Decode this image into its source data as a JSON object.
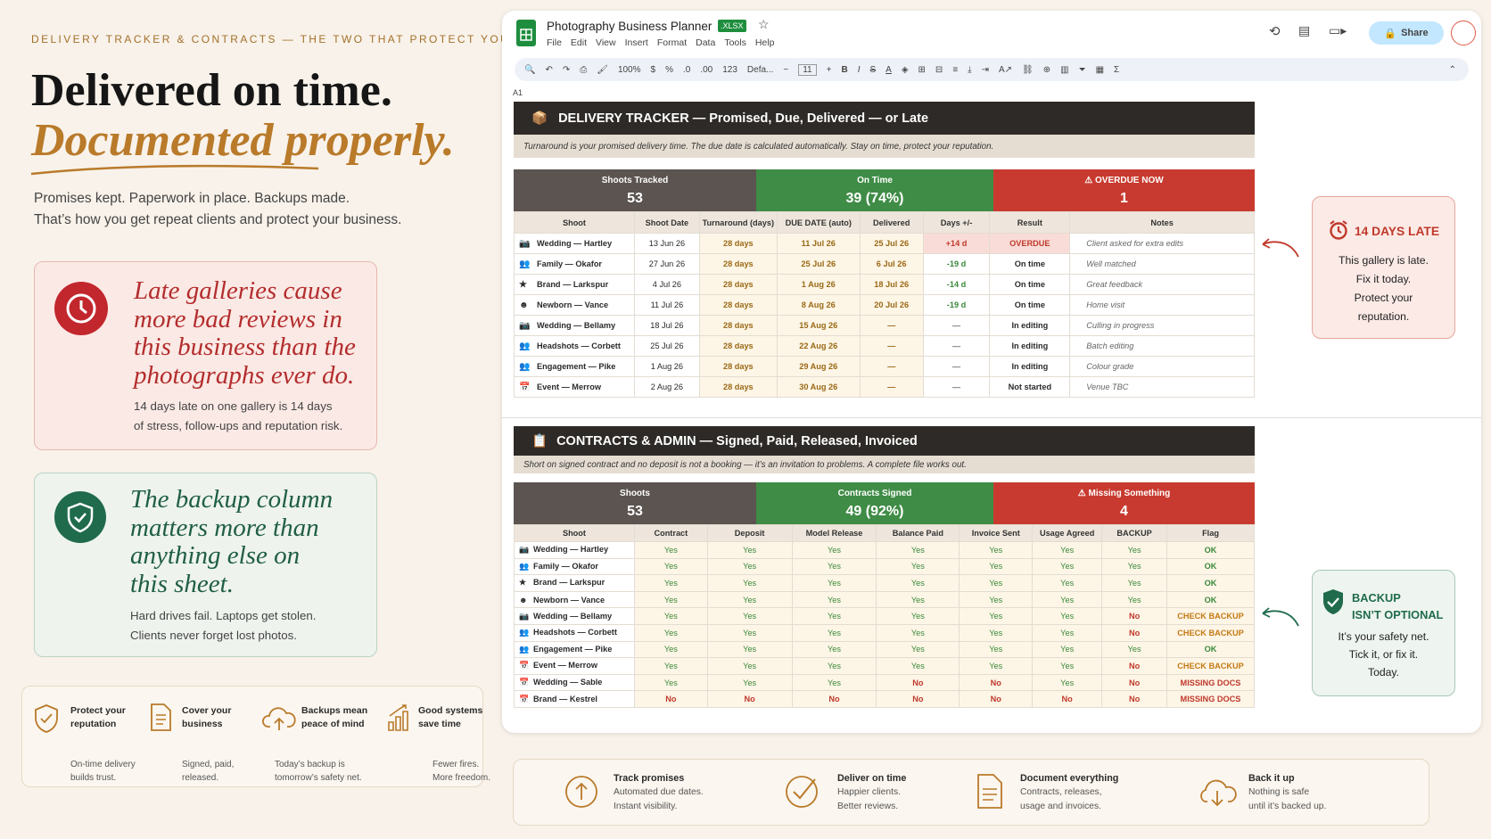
{
  "hero": {
    "eyebrow": "DELIVERY TRACKER & CONTRACTS — THE TWO THAT PROTECT YOU",
    "title_line1": "Delivered on time.",
    "title_line2": "Documented properly.",
    "subtitle_line1": "Promises kept. Paperwork in place. Backups made.",
    "subtitle_line2": "That’s how you get repeat clients and protect your business."
  },
  "card_late": {
    "quote": [
      "Late galleries cause",
      "more bad reviews in",
      "this business than the",
      "photographs ever do."
    ],
    "body": [
      "14 days late on one gallery is 14 days",
      "of stress, follow-ups and reputation risk."
    ]
  },
  "card_backup": {
    "quote": [
      "The backup column",
      "matters more than",
      "anything else on",
      "this sheet."
    ],
    "body": [
      "Hard drives fail. Laptops get stolen.",
      "Clients never forget lost photos."
    ]
  },
  "features": [
    {
      "title": [
        "Protect your",
        "reputation"
      ],
      "desc": [
        "On-time delivery",
        "builds trust."
      ],
      "icon": "shield-check-icon"
    },
    {
      "title": [
        "Cover your",
        "business"
      ],
      "desc": [
        "Signed, paid,",
        "released."
      ],
      "icon": "document-icon"
    },
    {
      "title": [
        "Backups mean",
        "peace of mind"
      ],
      "desc": [
        "Today’s backup is",
        "tomorrow’s safety net."
      ],
      "icon": "cloud-upload-icon"
    },
    {
      "title": [
        "Good systems",
        "save time"
      ],
      "desc": [
        "Fewer fires.",
        "More freedom."
      ],
      "icon": "bar-chart-icon"
    }
  ],
  "sheet": {
    "doc_title": "Photography Business Planner",
    "badge": ".XLSX",
    "menu": [
      "File",
      "Edit",
      "View",
      "Insert",
      "Format",
      "Data",
      "Tools",
      "Help"
    ],
    "share_label": "Share",
    "zoom": "100%",
    "font": "Defa...",
    "font_size": "11",
    "cell_ref": "A1",
    "delivery": {
      "header": "DELIVERY TRACKER — Promised, Due, Delivered — or Late",
      "note": "Turnaround is your promised delivery time. The due date is calculated automatically. Stay on time, protect your reputation.",
      "stats": [
        {
          "label": "Shoots Tracked",
          "value": "53",
          "color": "#5b5450"
        },
        {
          "label": "On Time",
          "value": "39 (74%)",
          "color": "#3f8c46"
        },
        {
          "label": "⚠ OVERDUE NOW",
          "value": "1",
          "color": "#c83a2f"
        }
      ],
      "columns": [
        "Shoot",
        "Shoot Date",
        "Turnaround (days)",
        "DUE DATE (auto)",
        "Delivered",
        "Days +/-",
        "Result",
        "Notes"
      ],
      "rows": [
        {
          "icon": "📷",
          "shoot": "Wedding — Hartley",
          "date": "13 Jun 26",
          "turn": "28 days",
          "due": "11 Jul 26",
          "delivered": "25 Jul 26",
          "days": "+14 d",
          "result": "OVERDUE",
          "notes": "Client asked for extra edits"
        },
        {
          "icon": "👥",
          "shoot": "Family — Okafor",
          "date": "27 Jun 26",
          "turn": "28 days",
          "due": "25 Jul 26",
          "delivered": "6 Jul 26",
          "days": "-19 d",
          "result": "On time",
          "notes": "Well matched"
        },
        {
          "icon": "★",
          "shoot": "Brand — Larkspur",
          "date": "4 Jul 26",
          "turn": "28 days",
          "due": "1 Aug 26",
          "delivered": "18 Jul 26",
          "days": "-14 d",
          "result": "On time",
          "notes": "Great feedback"
        },
        {
          "icon": "☻",
          "shoot": "Newborn — Vance",
          "date": "11 Jul 26",
          "turn": "28 days",
          "due": "8 Aug 26",
          "delivered": "20 Jul 26",
          "days": "-19 d",
          "result": "On time",
          "notes": "Home visit"
        },
        {
          "icon": "📷",
          "shoot": "Wedding — Bellamy",
          "date": "18 Jul 26",
          "turn": "28 days",
          "due": "15 Aug 26",
          "delivered": "—",
          "days": "—",
          "result": "In editing",
          "notes": "Culling in progress"
        },
        {
          "icon": "👥",
          "shoot": "Headshots — Corbett",
          "date": "25 Jul 26",
          "turn": "28 days",
          "due": "22 Aug 26",
          "delivered": "—",
          "days": "—",
          "result": "In editing",
          "notes": "Batch editing"
        },
        {
          "icon": "👥",
          "shoot": "Engagement — Pike",
          "date": "1 Aug 26",
          "turn": "28 days",
          "due": "29 Aug 26",
          "delivered": "—",
          "days": "—",
          "result": "In editing",
          "notes": "Colour grade"
        },
        {
          "icon": "📅",
          "shoot": "Event — Merrow",
          "date": "2 Aug 26",
          "turn": "28 days",
          "due": "30 Aug 26",
          "delivered": "—",
          "days": "—",
          "result": "Not started",
          "notes": "Venue TBC"
        }
      ]
    },
    "contracts": {
      "header": "CONTRACTS & ADMIN — Signed, Paid, Released, Invoiced",
      "note": "Short on signed contract and no deposit is not a booking — it’s an invitation to problems. A complete file works out.",
      "stats": [
        {
          "label": "Shoots",
          "value": "53",
          "color": "#5b5450"
        },
        {
          "label": "Contracts Signed",
          "value": "49 (92%)",
          "color": "#3f8c46"
        },
        {
          "label": "⚠ Missing Something",
          "value": "4",
          "color": "#c83a2f"
        }
      ],
      "columns": [
        "Shoot",
        "Contract",
        "Deposit",
        "Model Release",
        "Balance Paid",
        "Invoice Sent",
        "Usage Agreed",
        "BACKUP",
        "Flag"
      ],
      "rows": [
        {
          "icon": "📷",
          "shoot": "Wedding — Hartley",
          "v": [
            "Yes",
            "Yes",
            "Yes",
            "Yes",
            "Yes",
            "Yes",
            "Yes"
          ],
          "flag": "OK"
        },
        {
          "icon": "👥",
          "shoot": "Family — Okafor",
          "v": [
            "Yes",
            "Yes",
            "Yes",
            "Yes",
            "Yes",
            "Yes",
            "Yes"
          ],
          "flag": "OK"
        },
        {
          "icon": "★",
          "shoot": "Brand — Larkspur",
          "v": [
            "Yes",
            "Yes",
            "Yes",
            "Yes",
            "Yes",
            "Yes",
            "Yes"
          ],
          "flag": "OK"
        },
        {
          "icon": "☻",
          "shoot": "Newborn — Vance",
          "v": [
            "Yes",
            "Yes",
            "Yes",
            "Yes",
            "Yes",
            "Yes",
            "Yes"
          ],
          "flag": "OK"
        },
        {
          "icon": "📷",
          "shoot": "Wedding — Bellamy",
          "v": [
            "Yes",
            "Yes",
            "Yes",
            "Yes",
            "Yes",
            "Yes",
            "No"
          ],
          "flag": "CHECK BACKUP"
        },
        {
          "icon": "👥",
          "shoot": "Headshots — Corbett",
          "v": [
            "Yes",
            "Yes",
            "Yes",
            "Yes",
            "Yes",
            "Yes",
            "No"
          ],
          "flag": "CHECK BACKUP"
        },
        {
          "icon": "👥",
          "shoot": "Engagement — Pike",
          "v": [
            "Yes",
            "Yes",
            "Yes",
            "Yes",
            "Yes",
            "Yes",
            "Yes"
          ],
          "flag": "OK"
        },
        {
          "icon": "📅",
          "shoot": "Event — Merrow",
          "v": [
            "Yes",
            "Yes",
            "Yes",
            "Yes",
            "Yes",
            "Yes",
            "No"
          ],
          "flag": "CHECK BACKUP"
        },
        {
          "icon": "📅",
          "shoot": "Wedding — Sable",
          "v": [
            "Yes",
            "Yes",
            "Yes",
            "No",
            "No",
            "Yes",
            "No"
          ],
          "flag": "MISSING DOCS"
        },
        {
          "icon": "📅",
          "shoot": "Brand — Kestrel",
          "v": [
            "No",
            "No",
            "No",
            "No",
            "No",
            "No",
            "No"
          ],
          "flag": "MISSING DOCS"
        }
      ]
    }
  },
  "callout_late": {
    "title": "14 DAYS LATE",
    "lines": [
      "This gallery is late.",
      "Fix it today.",
      "Protect your",
      "reputation."
    ]
  },
  "callout_backup": {
    "title": [
      "BACKUP",
      "ISN’T OPTIONAL"
    ],
    "lines": [
      "It’s your safety net.",
      "Tick it, or fix it.",
      "Today."
    ]
  },
  "bottom_features": [
    {
      "title": "Track promises",
      "desc": [
        "Automated due dates.",
        "Instant visibility."
      ],
      "icon": "arrow-up-circle-icon"
    },
    {
      "title": "Deliver on time",
      "desc": [
        "Happier clients.",
        "Better reviews."
      ],
      "icon": "check-circle-icon"
    },
    {
      "title": "Document everything",
      "desc": [
        "Contracts, releases,",
        "usage and invoices."
      ],
      "icon": "document-icon"
    },
    {
      "title": "Back it up",
      "desc": [
        "Nothing is safe",
        "until it’s backed up."
      ],
      "icon": "cloud-download-icon"
    }
  ]
}
